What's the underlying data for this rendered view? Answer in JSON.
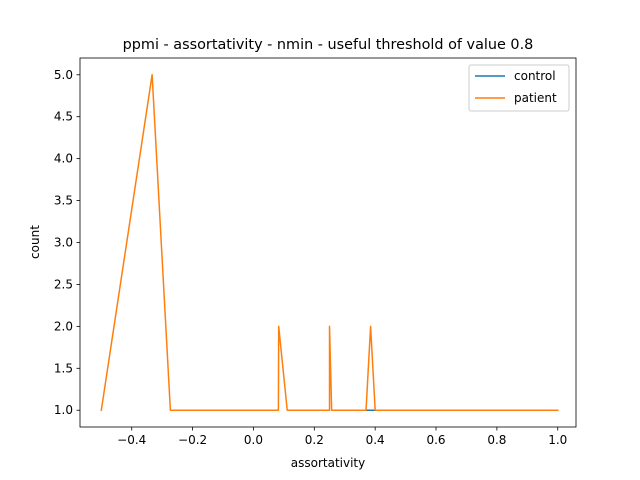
{
  "chart_data": {
    "type": "line",
    "title": "ppmi - assortativity - nmin - useful threshold of value 0.8",
    "xlabel": "assortativity",
    "ylabel": "count",
    "xlim": [
      -0.57,
      1.06
    ],
    "ylim": [
      0.8,
      5.2
    ],
    "xticks": [
      -0.4,
      -0.2,
      0.0,
      0.2,
      0.4,
      0.6,
      0.8,
      1.0
    ],
    "xtick_labels": [
      "−0.4",
      "−0.2",
      "0.0",
      "0.2",
      "0.4",
      "0.6",
      "0.8",
      "1.0"
    ],
    "yticks": [
      1.0,
      1.5,
      2.0,
      2.5,
      3.0,
      3.5,
      4.0,
      4.5,
      5.0
    ],
    "ytick_labels": [
      "1.0",
      "1.5",
      "2.0",
      "2.5",
      "3.0",
      "3.5",
      "4.0",
      "4.5",
      "5.0"
    ],
    "grid": false,
    "legend_position": "top-right",
    "series": [
      {
        "name": "control",
        "color": "#1f77b4",
        "x": [
          0.27,
          1.0
        ],
        "y": [
          1.0,
          1.0
        ]
      },
      {
        "name": "patient",
        "color": "#ff7f0e",
        "x": [
          -0.5,
          -0.333,
          -0.273,
          0.082,
          0.083,
          0.111,
          0.25,
          0.25,
          0.257,
          0.37,
          0.385,
          0.4,
          0.5,
          0.667,
          0.8,
          1.0
        ],
        "y": [
          1.0,
          5.0,
          1.0,
          1.0,
          2.0,
          1.0,
          1.0,
          2.0,
          1.0,
          1.0,
          2.0,
          1.0,
          1.0,
          1.0,
          1.0,
          1.0
        ]
      }
    ]
  }
}
